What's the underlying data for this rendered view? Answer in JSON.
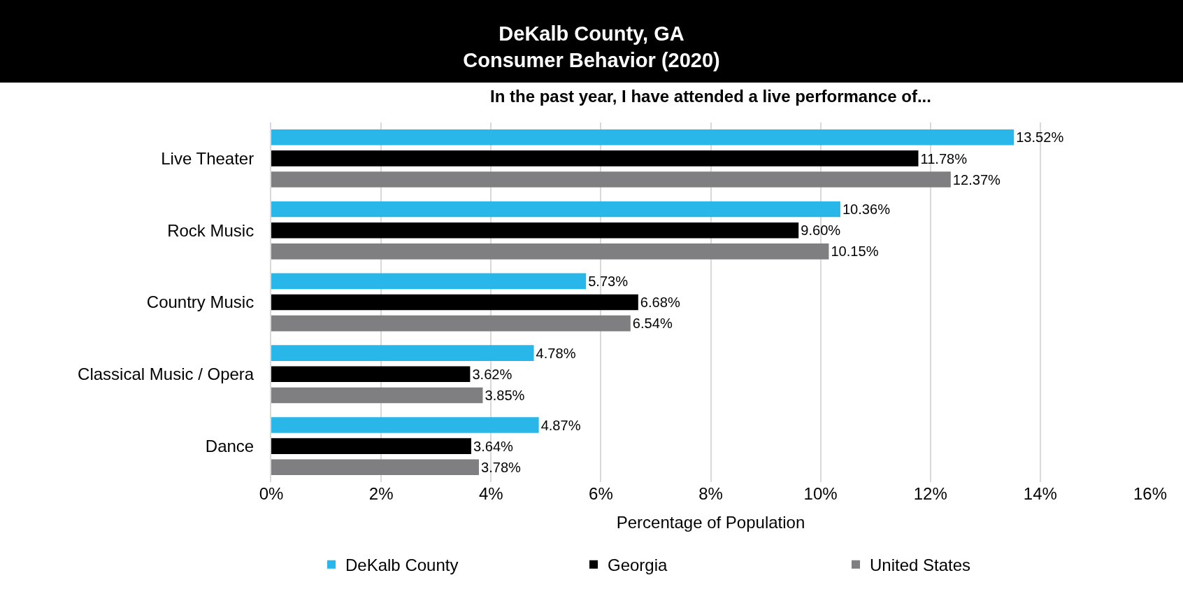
{
  "chart_data": {
    "type": "bar",
    "orientation": "horizontal",
    "title": "DeKalb County, GA\nConsumer Behavior (2020)",
    "subtitle": "In the past year, I have attended a live performance of...",
    "xlabel": "Percentage of Population",
    "categories": [
      "Live Theater",
      "Rock Music",
      "Country Music",
      "Classical Music / Opera",
      "Dance"
    ],
    "series": [
      {
        "name": "DeKalb County",
        "color": "#29b6e8",
        "values": [
          13.52,
          10.36,
          5.73,
          4.78,
          4.87
        ],
        "value_labels": [
          "13.52%",
          "10.36%",
          "5.73%",
          "4.78%",
          "4.87%"
        ]
      },
      {
        "name": "Georgia",
        "color": "#000000",
        "values": [
          11.78,
          9.6,
          6.68,
          3.62,
          3.64
        ],
        "value_labels": [
          "11.78%",
          "9.60%",
          "6.68%",
          "3.62%",
          "3.64%"
        ]
      },
      {
        "name": "United States",
        "color": "#7f7f82",
        "values": [
          12.37,
          10.15,
          6.54,
          3.85,
          3.78
        ],
        "value_labels": [
          "12.37%",
          "10.15%",
          "6.54%",
          "3.85%",
          "3.78%"
        ]
      }
    ],
    "xlim": [
      0,
      16
    ],
    "xticks": [
      {
        "value": 0,
        "label": "0%"
      },
      {
        "value": 2,
        "label": "2%"
      },
      {
        "value": 4,
        "label": "4%"
      },
      {
        "value": 6,
        "label": "6%"
      },
      {
        "value": 8,
        "label": "8%"
      },
      {
        "value": 10,
        "label": "10%"
      },
      {
        "value": 12,
        "label": "12%"
      },
      {
        "value": 14,
        "label": "14%"
      },
      {
        "value": 16,
        "label": "16%"
      }
    ],
    "grid": "x",
    "legend": "bottom"
  }
}
